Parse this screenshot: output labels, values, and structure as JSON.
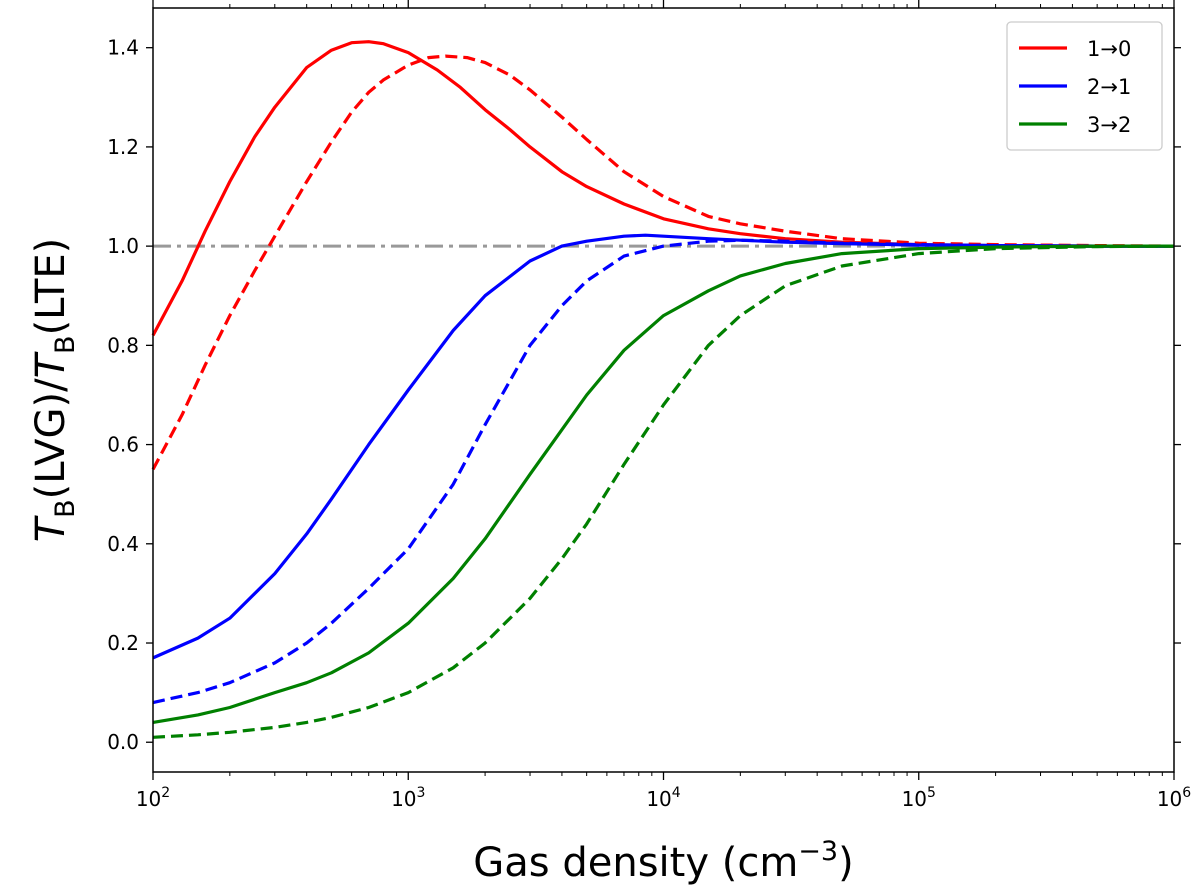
{
  "chart_data": {
    "type": "line",
    "xlabel": {
      "main": "Gas density (cm",
      "sup": "−3",
      "end": ")"
    },
    "ylabel": {
      "t1": "T",
      "s1": "B",
      "m1": "(LVG)/",
      "t2": "T",
      "s2": "B",
      "m2": "(LTE)"
    },
    "x_scale": "log",
    "xlim": [
      100,
      1000000
    ],
    "ylim": [
      -0.06,
      1.48
    ],
    "x_ticks": [
      {
        "value": 100,
        "base": "10",
        "exp": "2"
      },
      {
        "value": 1000,
        "base": "10",
        "exp": "3"
      },
      {
        "value": 10000,
        "base": "10",
        "exp": "4"
      },
      {
        "value": 100000,
        "base": "10",
        "exp": "5"
      },
      {
        "value": 1000000,
        "base": "10",
        "exp": "6"
      }
    ],
    "y_ticks": [
      "0.0",
      "0.2",
      "0.4",
      "0.6",
      "0.8",
      "1.0",
      "1.2",
      "1.4"
    ],
    "reference_line": {
      "y": 1.0,
      "color": "#999999",
      "style": "dashdot"
    },
    "legend": {
      "placement": "top-right",
      "entries": [
        {
          "label": "1→0",
          "color": "#ff0000"
        },
        {
          "label": "2→1",
          "color": "#0000ff"
        },
        {
          "label": "3→2",
          "color": "#008000"
        }
      ]
    },
    "series": [
      {
        "transition": "1→0",
        "style": "solid",
        "color": "#ff0000",
        "x": [
          100,
          130,
          160,
          200,
          250,
          300,
          400,
          500,
          600,
          700,
          800,
          1000,
          1300,
          1600,
          2000,
          2500,
          3000,
          4000,
          5000,
          7000,
          10000,
          15000,
          20000,
          30000,
          50000,
          100000,
          200000,
          500000,
          1000000
        ],
        "y": [
          0.82,
          0.93,
          1.03,
          1.13,
          1.22,
          1.28,
          1.36,
          1.395,
          1.41,
          1.412,
          1.408,
          1.39,
          1.355,
          1.32,
          1.275,
          1.235,
          1.2,
          1.15,
          1.12,
          1.085,
          1.055,
          1.035,
          1.025,
          1.015,
          1.008,
          1.003,
          1.001,
          1.0,
          1.0
        ]
      },
      {
        "transition": "1→0",
        "style": "dashed",
        "color": "#ff0000",
        "x": [
          100,
          130,
          160,
          200,
          250,
          300,
          400,
          500,
          600,
          700,
          800,
          1000,
          1200,
          1400,
          1700,
          2000,
          2500,
          3000,
          4000,
          5000,
          7000,
          10000,
          15000,
          20000,
          30000,
          50000,
          100000,
          200000,
          500000,
          1000000
        ],
        "y": [
          0.55,
          0.66,
          0.76,
          0.86,
          0.95,
          1.02,
          1.13,
          1.21,
          1.27,
          1.31,
          1.335,
          1.365,
          1.38,
          1.383,
          1.38,
          1.37,
          1.345,
          1.315,
          1.26,
          1.215,
          1.15,
          1.1,
          1.06,
          1.045,
          1.03,
          1.015,
          1.006,
          1.003,
          1.001,
          1.0
        ]
      },
      {
        "transition": "2→1",
        "style": "solid",
        "color": "#0000ff",
        "x": [
          100,
          150,
          200,
          300,
          400,
          500,
          700,
          1000,
          1500,
          2000,
          3000,
          4000,
          5000,
          7000,
          8500,
          10000,
          15000,
          20000,
          30000,
          50000,
          100000,
          200000,
          500000,
          1000000
        ],
        "y": [
          0.17,
          0.21,
          0.25,
          0.34,
          0.42,
          0.49,
          0.6,
          0.71,
          0.83,
          0.9,
          0.97,
          1.0,
          1.01,
          1.02,
          1.022,
          1.02,
          1.015,
          1.012,
          1.008,
          1.005,
          1.002,
          1.001,
          1.0,
          1.0
        ]
      },
      {
        "transition": "2→1",
        "style": "dashed",
        "color": "#0000ff",
        "x": [
          100,
          150,
          200,
          300,
          400,
          500,
          700,
          1000,
          1500,
          2000,
          3000,
          4000,
          5000,
          7000,
          10000,
          15000,
          20000,
          30000,
          50000,
          100000,
          200000,
          500000,
          1000000
        ],
        "y": [
          0.08,
          0.1,
          0.12,
          0.16,
          0.2,
          0.24,
          0.31,
          0.39,
          0.52,
          0.64,
          0.8,
          0.88,
          0.93,
          0.98,
          1.0,
          1.01,
          1.012,
          1.01,
          1.006,
          1.003,
          1.001,
          1.0,
          1.0
        ]
      },
      {
        "transition": "3→2",
        "style": "solid",
        "color": "#008000",
        "x": [
          100,
          150,
          200,
          300,
          400,
          500,
          700,
          1000,
          1500,
          2000,
          3000,
          4000,
          5000,
          7000,
          10000,
          15000,
          20000,
          30000,
          50000,
          100000,
          200000,
          500000,
          1000000
        ],
        "y": [
          0.04,
          0.055,
          0.07,
          0.1,
          0.12,
          0.14,
          0.18,
          0.24,
          0.33,
          0.41,
          0.54,
          0.63,
          0.7,
          0.79,
          0.86,
          0.91,
          0.94,
          0.965,
          0.985,
          0.995,
          0.998,
          1.0,
          1.0
        ]
      },
      {
        "transition": "3→2",
        "style": "dashed",
        "color": "#008000",
        "x": [
          100,
          150,
          200,
          300,
          400,
          500,
          700,
          1000,
          1500,
          2000,
          3000,
          4000,
          5000,
          7000,
          10000,
          15000,
          20000,
          30000,
          50000,
          100000,
          200000,
          500000,
          1000000
        ],
        "y": [
          0.01,
          0.015,
          0.02,
          0.03,
          0.04,
          0.05,
          0.07,
          0.1,
          0.15,
          0.2,
          0.29,
          0.37,
          0.44,
          0.56,
          0.68,
          0.8,
          0.86,
          0.92,
          0.96,
          0.985,
          0.995,
          0.999,
          1.0
        ]
      }
    ]
  }
}
